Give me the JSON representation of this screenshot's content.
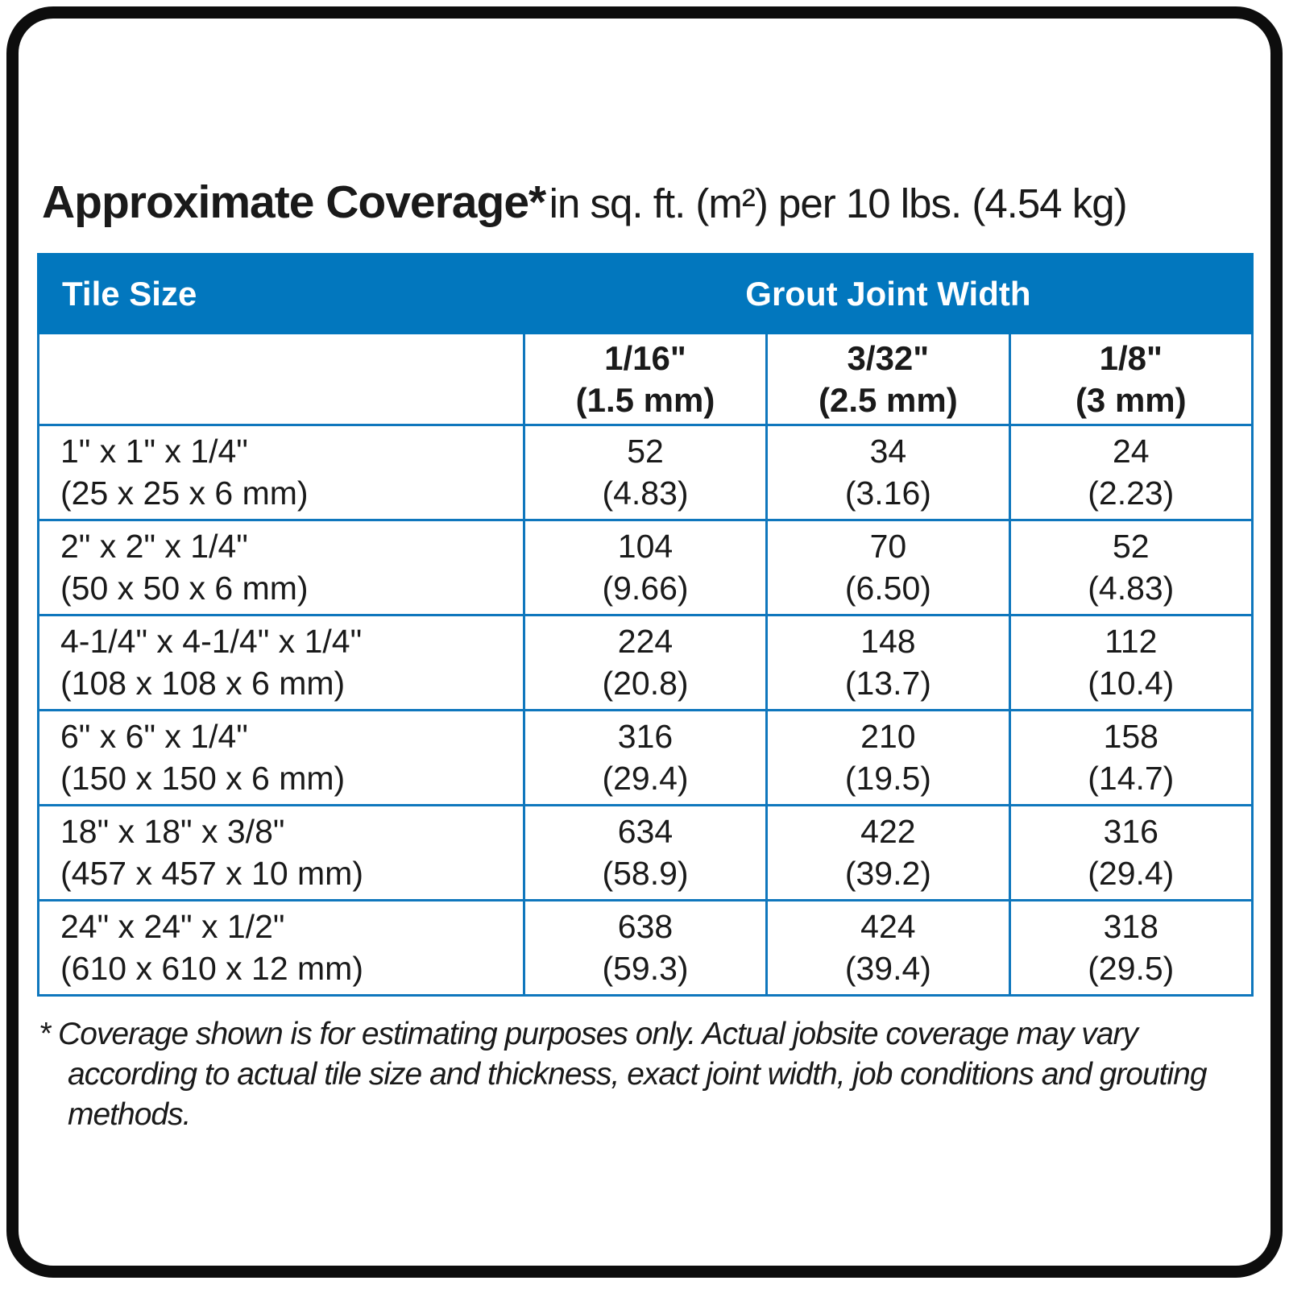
{
  "title": {
    "main": "Approximate Coverage*",
    "suffix": "in sq. ft. (m²) per 10 lbs. (4.54 kg)"
  },
  "table": {
    "tile_size_header": "Tile Size",
    "group_header": "Grout Joint Width",
    "joint_widths": [
      {
        "inches": "1/16\"",
        "metric": "(1.5 mm)"
      },
      {
        "inches": "3/32\"",
        "metric": "(2.5 mm)"
      },
      {
        "inches": "1/8\"",
        "metric": "(3 mm)"
      }
    ],
    "rows": [
      {
        "tile": "1\" x 1\" x 1/4\"",
        "tile_metric": "(25 x 25 x 6 mm)",
        "values": [
          {
            "sqft": "52",
            "m2": "(4.83)"
          },
          {
            "sqft": "34",
            "m2": "(3.16)"
          },
          {
            "sqft": "24",
            "m2": "(2.23)"
          }
        ]
      },
      {
        "tile": "2\" x 2\" x 1/4\"",
        "tile_metric": "(50 x 50 x 6 mm)",
        "values": [
          {
            "sqft": "104",
            "m2": "(9.66)"
          },
          {
            "sqft": "70",
            "m2": "(6.50)"
          },
          {
            "sqft": "52",
            "m2": "(4.83)"
          }
        ]
      },
      {
        "tile": "4-1/4\" x 4-1/4\" x 1/4\"",
        "tile_metric": "(108 x 108 x 6 mm)",
        "values": [
          {
            "sqft": "224",
            "m2": "(20.8)"
          },
          {
            "sqft": "148",
            "m2": "(13.7)"
          },
          {
            "sqft": "112",
            "m2": "(10.4)"
          }
        ]
      },
      {
        "tile": "6\" x 6\" x 1/4\"",
        "tile_metric": "(150 x 150 x 6 mm)",
        "values": [
          {
            "sqft": "316",
            "m2": "(29.4)"
          },
          {
            "sqft": "210",
            "m2": "(19.5)"
          },
          {
            "sqft": "158",
            "m2": "(14.7)"
          }
        ]
      },
      {
        "tile": "18\" x 18\" x 3/8\"",
        "tile_metric": "(457 x 457 x 10 mm)",
        "values": [
          {
            "sqft": "634",
            "m2": "(58.9)"
          },
          {
            "sqft": "422",
            "m2": "(39.2)"
          },
          {
            "sqft": "316",
            "m2": "(29.4)"
          }
        ]
      },
      {
        "tile": "24\" x 24\" x 1/2\"",
        "tile_metric": "(610 x 610 x 12 mm)",
        "values": [
          {
            "sqft": "638",
            "m2": "(59.3)"
          },
          {
            "sqft": "424",
            "m2": "(39.4)"
          },
          {
            "sqft": "318",
            "m2": "(29.5)"
          }
        ]
      }
    ]
  },
  "footnote": {
    "marker": "*",
    "text": "Coverage shown is for estimating purposes only. Actual jobsite coverage may vary according to actual tile size and thickness, exact joint width, job conditions and grouting methods."
  },
  "colors": {
    "header_blue": "#0277be",
    "grid_blue": "#0f77bd",
    "frame_black": "#0d0d0d"
  }
}
